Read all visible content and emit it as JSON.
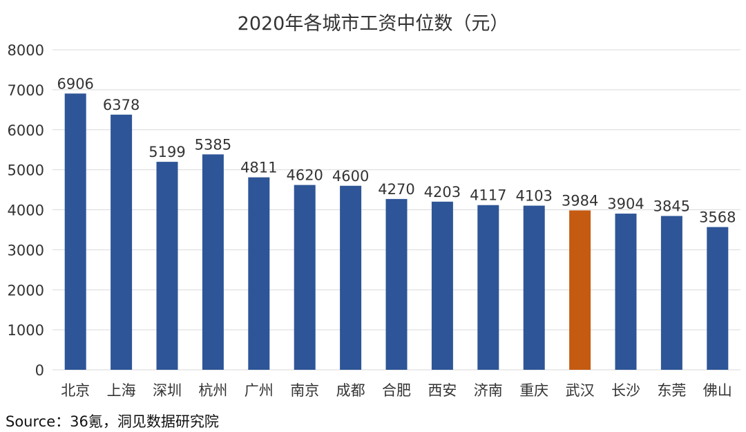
{
  "chart_data": {
    "type": "bar",
    "title": "2020年各城市工资中位数（元）",
    "categories": [
      "北京",
      "上海",
      "深圳",
      "杭州",
      "广州",
      "南京",
      "成都",
      "合肥",
      "西安",
      "济南",
      "重庆",
      "武汉",
      "长沙",
      "东莞",
      "佛山"
    ],
    "values": [
      6906,
      6378,
      5199,
      5385,
      4811,
      4620,
      4600,
      4270,
      4203,
      4117,
      4103,
      3984,
      3904,
      3845,
      3568
    ],
    "ylim": [
      0,
      8000
    ],
    "yticks": [
      0,
      1000,
      2000,
      3000,
      4000,
      5000,
      6000,
      7000,
      8000
    ],
    "grid": true,
    "highlight_category": "武汉",
    "colors": {
      "bar": "#2e5597",
      "highlight": "#c55a11",
      "grid": "#d9d9d9",
      "text": "#333333"
    }
  },
  "source": "Source：36氪，洞见数据研究院"
}
